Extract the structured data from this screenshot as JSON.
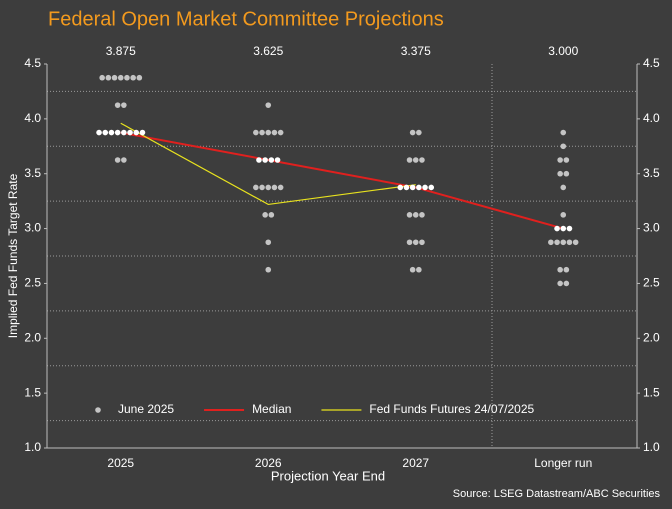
{
  "chart_data": {
    "type": "dotplot",
    "title": "Federal Open Market Committee Projections",
    "y_label": "Implied Fed Funds Target Rate",
    "x_label": "Projection Year End",
    "source": "Source: LSEG Datastream/ABC Securities",
    "categories": [
      "2025",
      "2026",
      "2027",
      "Longer run"
    ],
    "ylim": [
      1.0,
      4.5
    ],
    "yticks": [
      {
        "value": 1.0,
        "label": "1.0"
      },
      {
        "value": 1.5,
        "label": "1.5"
      },
      {
        "value": 2.0,
        "label": "2.0"
      },
      {
        "value": 2.5,
        "label": "2.5"
      },
      {
        "value": 3.0,
        "label": "3.0"
      },
      {
        "value": 3.5,
        "label": "3.5"
      },
      {
        "value": 4.0,
        "label": "4.0"
      },
      {
        "value": 4.5,
        "label": "4.5"
      }
    ],
    "minor_yticks": [
      4.25,
      3.75,
      3.25,
      2.75,
      2.25,
      1.75,
      1.25
    ],
    "highlight_color": "#ffffff",
    "series": [
      {
        "name": "June 2025",
        "type": "dots",
        "color": "#c4c4c4",
        "values": [
          [
            4.375,
            4.375,
            4.375,
            4.375,
            4.375,
            4.375,
            4.375,
            4.125,
            4.125,
            3.875,
            3.875,
            3.875,
            3.875,
            3.875,
            3.875,
            3.875,
            3.875,
            3.625,
            3.625
          ],
          [
            4.125,
            3.875,
            3.875,
            3.875,
            3.875,
            3.875,
            3.625,
            3.625,
            3.625,
            3.625,
            3.375,
            3.375,
            3.375,
            3.375,
            3.375,
            3.125,
            3.125,
            2.875,
            2.625
          ],
          [
            3.875,
            3.875,
            3.625,
            3.625,
            3.625,
            3.375,
            3.375,
            3.375,
            3.375,
            3.375,
            3.375,
            3.125,
            3.125,
            3.125,
            2.875,
            2.875,
            2.875,
            2.625,
            2.625
          ],
          [
            3.875,
            3.75,
            3.625,
            3.625,
            3.5,
            3.5,
            3.375,
            3.125,
            3.0,
            3.0,
            3.0,
            2.875,
            2.875,
            2.875,
            2.875,
            2.875,
            2.625,
            2.625,
            2.5,
            2.5
          ]
        ]
      },
      {
        "name": "Median",
        "type": "line",
        "color": "#e0201e",
        "width": 2,
        "values": [
          3.875,
          3.625,
          3.375,
          3.0
        ],
        "value_labels": [
          "3.875",
          "3.625",
          "3.375",
          "3.000"
        ]
      },
      {
        "name": "Fed Funds Futures 24/07/2025",
        "type": "line",
        "color": "#e8e21e",
        "width": 1.2,
        "values": [
          3.96,
          3.22,
          3.4,
          null
        ]
      }
    ]
  }
}
